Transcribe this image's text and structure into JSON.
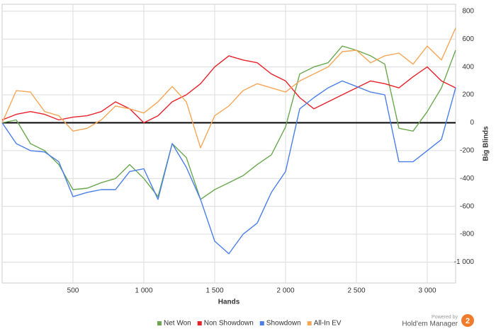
{
  "chart_data": {
    "type": "line",
    "x_label": "Hands",
    "y_label": "Big Blinds",
    "x": [
      0,
      100,
      200,
      300,
      400,
      500,
      600,
      700,
      800,
      900,
      1000,
      1100,
      1200,
      1300,
      1400,
      1500,
      1600,
      1700,
      1800,
      1900,
      2000,
      2100,
      2200,
      2300,
      2400,
      2500,
      2600,
      2700,
      2800,
      2900,
      3000,
      3100,
      3200
    ],
    "series": [
      {
        "name": "Net Won",
        "color": "#6aa84f",
        "values": [
          0,
          20,
          -150,
          -200,
          -300,
          -480,
          -470,
          -430,
          -400,
          -300,
          -400,
          -530,
          -150,
          -250,
          -550,
          -480,
          -430,
          -380,
          -300,
          -230,
          -30,
          350,
          400,
          430,
          550,
          520,
          480,
          420,
          -40,
          -60,
          80,
          250,
          520
        ]
      },
      {
        "name": "Non Showdown",
        "color": "#e8202a",
        "values": [
          20,
          60,
          80,
          60,
          20,
          40,
          50,
          80,
          150,
          100,
          0,
          50,
          150,
          200,
          280,
          400,
          480,
          450,
          430,
          350,
          300,
          180,
          100,
          150,
          200,
          250,
          300,
          280,
          250,
          330,
          400,
          300,
          250
        ]
      },
      {
        "name": "Showdown",
        "color": "#4a7ee8",
        "values": [
          0,
          -150,
          -200,
          -210,
          -280,
          -530,
          -500,
          -480,
          -480,
          -350,
          -330,
          -550,
          -150,
          -320,
          -550,
          -850,
          -940,
          -800,
          -720,
          -500,
          -350,
          100,
          180,
          250,
          300,
          260,
          220,
          200,
          -280,
          -280,
          -200,
          -120,
          250
        ]
      },
      {
        "name": "All-In EV",
        "color": "#f5a656",
        "values": [
          0,
          230,
          220,
          80,
          50,
          -60,
          -40,
          20,
          120,
          100,
          70,
          150,
          260,
          150,
          -180,
          50,
          120,
          230,
          280,
          250,
          220,
          300,
          350,
          400,
          510,
          520,
          430,
          480,
          500,
          420,
          550,
          450,
          680
        ]
      }
    ],
    "xlim": [
      0,
      3200
    ],
    "xticks": [
      500,
      {
        "value": 1000,
        "label": "1 000"
      },
      {
        "value": 1500,
        "label": "1 500"
      },
      {
        "value": 2000,
        "label": "2 000"
      },
      {
        "value": 2500,
        "label": "2 500"
      },
      {
        "value": 3000,
        "label": "3 000"
      }
    ],
    "ylim": [
      -1150,
      850
    ],
    "yticks": [
      800,
      600,
      400,
      200,
      0,
      -200,
      -400,
      -600,
      -800,
      {
        "value": -1000,
        "label": "-1 000"
      }
    ],
    "grid": true,
    "legend": "bottom"
  },
  "branding": {
    "powered": "Powered by",
    "product": "Hold'em Manager",
    "badge": "2"
  }
}
